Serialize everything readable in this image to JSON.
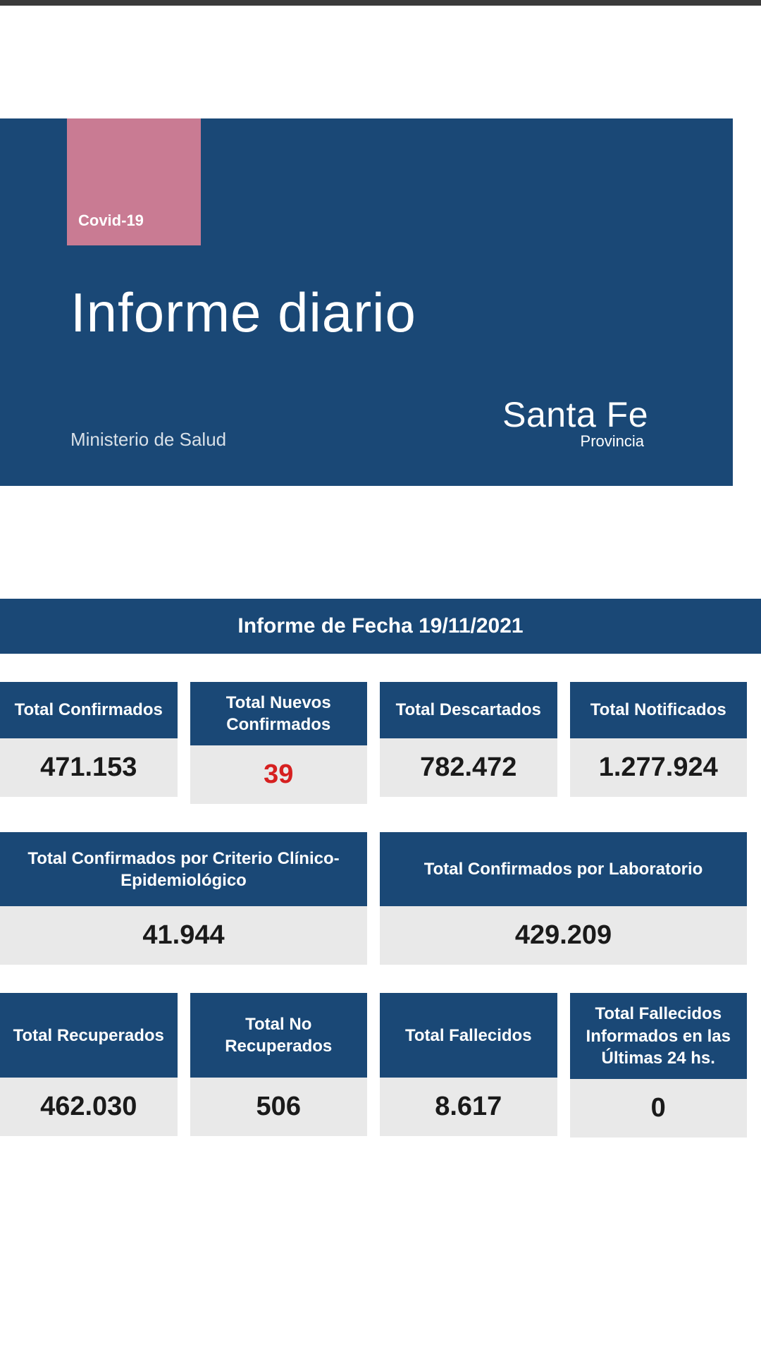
{
  "colors": {
    "primary": "#1a4876",
    "accent": "#c97b93",
    "value_bg": "#e9e9e9",
    "highlight": "#d62020",
    "text_light": "#ffffff"
  },
  "tag": "Covid-19",
  "title": "Informe diario",
  "ministry": "Ministerio de Salud",
  "logo": {
    "main": "Santa Fe",
    "sub": "Provincia"
  },
  "date_bar": "Informe de Fecha 19/11/2021",
  "row1": [
    {
      "label": "Total Confirmados",
      "value": "471.153",
      "highlight": false
    },
    {
      "label": "Total Nuevos Confirmados",
      "value": "39",
      "highlight": true
    },
    {
      "label": "Total Descartados",
      "value": "782.472",
      "highlight": false
    },
    {
      "label": "Total Notificados",
      "value": "1.277.924",
      "highlight": false
    }
  ],
  "row2": [
    {
      "label": "Total Confirmados por Criterio Clínico-Epidemiológico",
      "value": "41.944"
    },
    {
      "label": "Total Confirmados por Laboratorio",
      "value": "429.209"
    }
  ],
  "row3": [
    {
      "label": "Total Recuperados",
      "value": "462.030"
    },
    {
      "label": "Total No Recuperados",
      "value": "506"
    },
    {
      "label": "Total Fallecidos",
      "value": "8.617"
    },
    {
      "label": "Total Fallecidos Informados en las Últimas 24 hs.",
      "value": "0"
    }
  ]
}
